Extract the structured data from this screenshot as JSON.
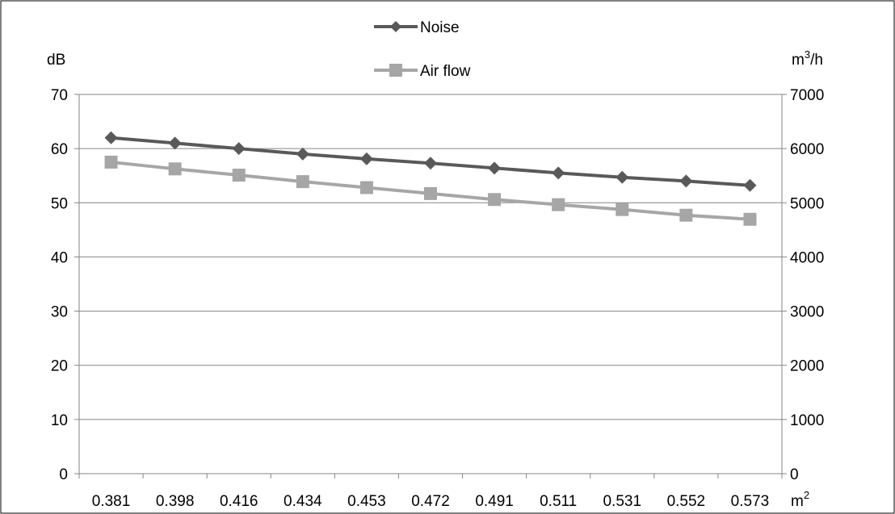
{
  "chart_data": {
    "type": "line",
    "categories": [
      "0.381",
      "0.398",
      "0.416",
      "0.434",
      "0.453",
      "0.472",
      "0.491",
      "0.511",
      "0.531",
      "0.552",
      "0.573"
    ],
    "x_unit": "m",
    "x_unit_sup": "2",
    "y_left": {
      "label": "dB",
      "ylim": [
        0,
        70
      ],
      "ticks": [
        "0",
        "10",
        "20",
        "30",
        "40",
        "50",
        "60",
        "70"
      ]
    },
    "y_right": {
      "label_base": "m",
      "label_sup": "3",
      "label_rest": "/h",
      "ylim": [
        0,
        7000
      ],
      "ticks": [
        "0",
        "1000",
        "2000",
        "3000",
        "4000",
        "5000",
        "6000",
        "7000"
      ]
    },
    "grid": true,
    "legend_position": "top-center",
    "series": [
      {
        "name": "Noise",
        "axis": "left",
        "marker": "diamond",
        "color": "#595959",
        "values": [
          62,
          61,
          60,
          59,
          58.1,
          57.3,
          56.4,
          55.5,
          54.7,
          54,
          53.2
        ]
      },
      {
        "name": "Air flow",
        "axis": "right",
        "marker": "square",
        "color": "#a6a6a6",
        "values": [
          5750,
          5625,
          5510,
          5390,
          5280,
          5170,
          5060,
          4965,
          4875,
          4770,
          4695
        ]
      }
    ]
  }
}
